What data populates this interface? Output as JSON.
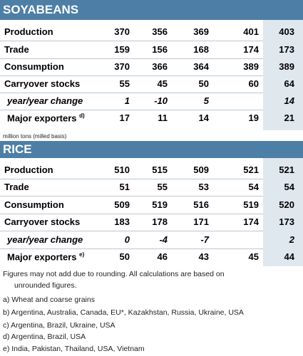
{
  "soy": {
    "title": "SOYABEANS",
    "rows": [
      {
        "label": "Production",
        "v": [
          "370",
          "356",
          "369",
          "401",
          "403"
        ]
      },
      {
        "label": "Trade",
        "v": [
          "159",
          "156",
          "168",
          "174",
          "173"
        ]
      },
      {
        "label": "Consumption",
        "v": [
          "370",
          "366",
          "364",
          "389",
          "389"
        ]
      },
      {
        "label": "Carryover stocks",
        "v": [
          "55",
          "45",
          "50",
          "60",
          "64"
        ]
      },
      {
        "label": "year/year change",
        "v": [
          "1",
          "-10",
          "5",
          "",
          "14"
        ]
      },
      {
        "label": "Major exporters",
        "sup": "d)",
        "v": [
          "17",
          "11",
          "14",
          "19",
          "21"
        ]
      }
    ]
  },
  "unit_note": "million tons (milled basis)",
  "rice": {
    "title": "RICE",
    "rows": [
      {
        "label": "Production",
        "v": [
          "510",
          "515",
          "509",
          "521",
          "521"
        ]
      },
      {
        "label": "Trade",
        "v": [
          "51",
          "55",
          "53",
          "54",
          "54"
        ]
      },
      {
        "label": "Consumption",
        "v": [
          "509",
          "519",
          "516",
          "519",
          "520"
        ]
      },
      {
        "label": "Carryover stocks",
        "v": [
          "183",
          "178",
          "171",
          "174",
          "173"
        ]
      },
      {
        "label": "year/year change",
        "v": [
          "0",
          "-4",
          "-7",
          "",
          "2"
        ]
      },
      {
        "label": "Major exporters",
        "sup": "e)",
        "v": [
          "50",
          "46",
          "43",
          "45",
          "44"
        ]
      }
    ]
  },
  "notes": {
    "line1": "Figures may not add due to rounding. All calculations are based on",
    "line2": "unrounded figures.",
    "a": "a) Wheat and coarse grains",
    "b": "b) Argentina, Australia, Canada, EU*, Kazakhstan, Russia, Ukraine, USA",
    "c": "c) Argentina, Brazil, Ukraine, USA",
    "d": "d) Argentina, Brazil, USA",
    "e": "e) India, Pakistan, Thailand, USA, Vietnam"
  }
}
